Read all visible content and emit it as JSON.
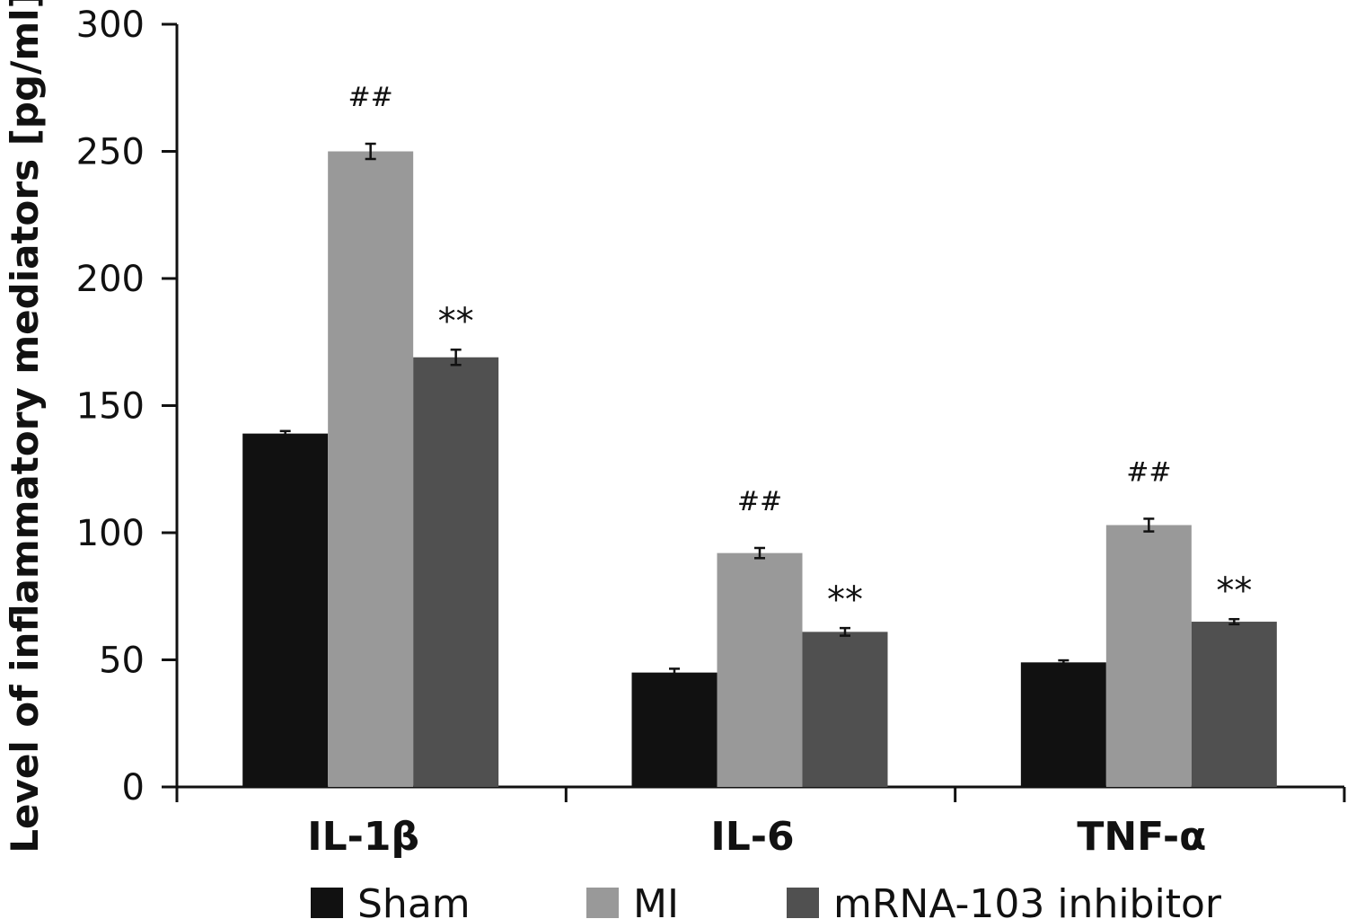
{
  "chart_data": {
    "type": "bar",
    "categories": [
      "IL-1β",
      "IL-6",
      "TNF-α"
    ],
    "series": [
      {
        "name": "Sham",
        "color": "#111111",
        "values": [
          139,
          45,
          49
        ],
        "errors": [
          1,
          1.5,
          0.8
        ]
      },
      {
        "name": "MI",
        "color": "#999999",
        "values": [
          250,
          92,
          103
        ],
        "errors": [
          3,
          2,
          2.5
        ]
      },
      {
        "name": "mRNA-103 inhibitor",
        "color": "#505050",
        "values": [
          169,
          61,
          65
        ],
        "errors": [
          3,
          1.5,
          1
        ]
      }
    ],
    "annotations": [
      {
        "series": 1,
        "category": 0,
        "text": "##"
      },
      {
        "series": 2,
        "category": 0,
        "text": "**"
      },
      {
        "series": 1,
        "category": 1,
        "text": "##"
      },
      {
        "series": 2,
        "category": 1,
        "text": "**"
      },
      {
        "series": 1,
        "category": 2,
        "text": "##"
      },
      {
        "series": 2,
        "category": 2,
        "text": "**"
      }
    ],
    "ylabel": "Level of inflammatory mediators [pg/ml]",
    "xlabel": "",
    "ylim": [
      0,
      300
    ],
    "yticks": [
      0,
      50,
      100,
      150,
      200,
      250,
      300
    ],
    "legend_position": "bottom",
    "grid": false
  }
}
